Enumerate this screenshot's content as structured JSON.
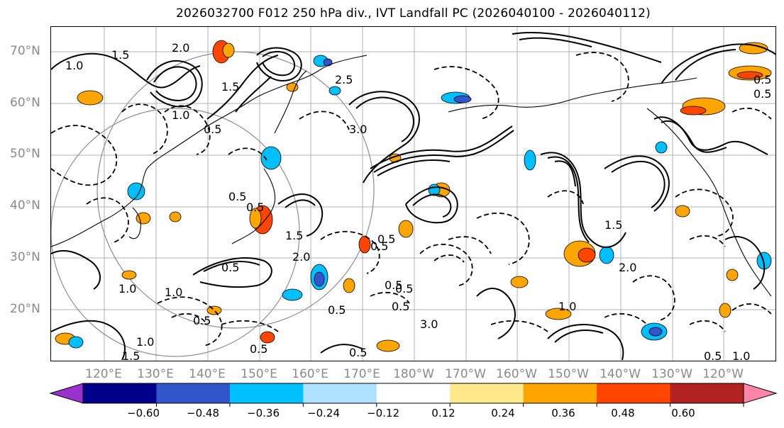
{
  "title": "2026032700 F012 250 hPa div., IVT Landfall PC (2026040100 - 2026040112)",
  "lat_labels": [
    "70°N",
    "60°N",
    "50°N",
    "40°N",
    "30°N",
    "20°N"
  ],
  "lon_labels": [
    "120°E",
    "130°E",
    "140°E",
    "150°E",
    "160°E",
    "170°E",
    "180°W",
    "170°W",
    "160°W",
    "150°W",
    "140°W",
    "130°W",
    "120°W"
  ],
  "contour_labels": [
    "1.5",
    "1.0",
    "2.0",
    "1.5",
    "0.5",
    "1.0",
    "0.5",
    "0.5",
    "1.0",
    "1.0",
    "0.5",
    "0.5",
    "0.5",
    "1.5",
    "1.0",
    "1.5",
    "2.0",
    "0.5",
    "0.5",
    "2.5",
    "3.0",
    "0.5",
    "1.5",
    "2.0",
    "0.5",
    "0.5",
    "3.0",
    "1.0",
    "0.5",
    "1.0",
    "0.5",
    "0.5",
    "0.5",
    "0.5"
  ],
  "colorbar": {
    "colors": [
      "#9b30d0",
      "#00008b",
      "#3355cc",
      "#00bfff",
      "#b0e0ff",
      "#ffffff",
      "#ffe98a",
      "#ffa500",
      "#ff4500",
      "#b22222",
      "#ff85a8"
    ],
    "extend_min_color": "#9b30d0",
    "extend_max_color": "#ff85a8",
    "ticks": [
      "−0.60",
      "−0.48",
      "−0.36",
      "−0.24",
      "−0.12",
      "0.12",
      "0.24",
      "0.36",
      "0.48",
      "0.60"
    ]
  },
  "map": {
    "projection": "equirectangular",
    "lon_range": [
      111,
      250
    ],
    "lat_range": [
      10,
      75
    ],
    "grid": true,
    "fill_colors": {
      "positive_strong": "#ff4500",
      "positive": "#ffa500",
      "negative": "#00bfff",
      "negative_strong": "#3355cc"
    },
    "contour_color": "#000000"
  }
}
